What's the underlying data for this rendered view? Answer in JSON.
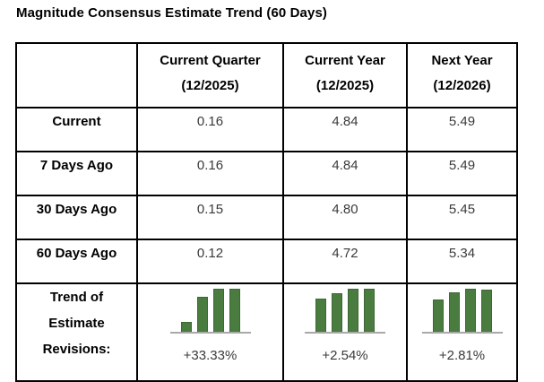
{
  "page": {
    "title": "Magnitude Consensus Estimate Trend (60 Days)"
  },
  "colors": {
    "bar_fill": "#4a7c40",
    "bar_border": "#3c6834",
    "baseline": "#a9a9a9",
    "grid_border": "#000000",
    "value_text": "#3a3a3a"
  },
  "table": {
    "col_headers": [
      {
        "line1": "Current Quarter",
        "line2": "(12/2025)"
      },
      {
        "line1": "Current Year",
        "line2": "(12/2025)"
      },
      {
        "line1": "Next Year",
        "line2": "(12/2026)"
      }
    ],
    "rows": [
      {
        "label": "Current",
        "values": [
          "0.16",
          "4.84",
          "5.49"
        ]
      },
      {
        "label": "7 Days Ago",
        "values": [
          "0.16",
          "4.84",
          "5.49"
        ]
      },
      {
        "label": "30 Days Ago",
        "values": [
          "0.15",
          "4.80",
          "5.45"
        ]
      },
      {
        "label": "60 Days Ago",
        "values": [
          "0.12",
          "4.72",
          "5.34"
        ]
      }
    ],
    "trend_row": {
      "label_lines": [
        "Trend of",
        "Estimate",
        "Revisions:"
      ],
      "cells": [
        {
          "percent": "+33.33%",
          "bar_heights_pct": [
            23,
            81,
            100,
            100
          ]
        },
        {
          "percent": "+2.54%",
          "bar_heights_pct": [
            78,
            90,
            100,
            99
          ]
        },
        {
          "percent": "+2.81%",
          "bar_heights_pct": [
            76,
            92,
            100,
            98
          ]
        }
      ]
    }
  },
  "chart_data": {
    "type": "table",
    "title": "Magnitude Consensus Estimate Trend (60 Days)",
    "columns": [
      "",
      "Current Quarter (12/2025)",
      "Current Year (12/2025)",
      "Next Year (12/2026)"
    ],
    "rows": [
      [
        "Current",
        0.16,
        4.84,
        5.49
      ],
      [
        "7 Days Ago",
        0.16,
        4.84,
        5.49
      ],
      [
        "30 Days Ago",
        0.15,
        4.8,
        5.45
      ],
      [
        "60 Days Ago",
        0.12,
        4.72,
        5.34
      ],
      [
        "Trend of Estimate Revisions:",
        "+33.33%",
        "+2.54%",
        "+2.81%"
      ]
    ],
    "mini_charts": [
      {
        "column": "Current Quarter (12/2025)",
        "type": "bar",
        "x": [
          "60 Days Ago",
          "30 Days Ago",
          "7 Days Ago",
          "Current"
        ],
        "values": [
          0.12,
          0.15,
          0.16,
          0.16
        ],
        "revision_label": "+33.33%"
      },
      {
        "column": "Current Year (12/2025)",
        "type": "bar",
        "x": [
          "60 Days Ago",
          "30 Days Ago",
          "7 Days Ago",
          "Current"
        ],
        "values": [
          4.72,
          4.8,
          4.84,
          4.84
        ],
        "revision_label": "+2.54%"
      },
      {
        "column": "Next Year (12/2026)",
        "type": "bar",
        "x": [
          "60 Days Ago",
          "30 Days Ago",
          "7 Days Ago",
          "Current"
        ],
        "values": [
          5.34,
          5.45,
          5.49,
          5.49
        ],
        "revision_label": "+2.81%"
      }
    ],
    "legend": "none",
    "grid": "off"
  }
}
